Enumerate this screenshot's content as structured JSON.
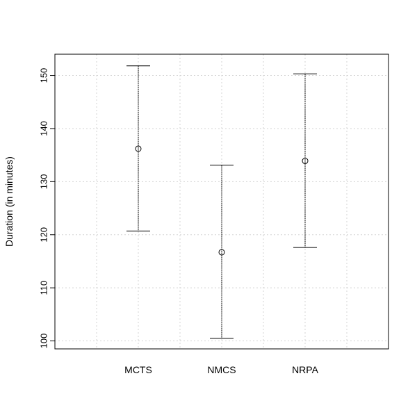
{
  "chart_data": {
    "type": "errorbar",
    "categories": [
      "MCTS",
      "NMCS",
      "NRPA"
    ],
    "series": [
      {
        "mean": [
          136.2,
          116.7,
          133.9
        ],
        "lower": [
          120.7,
          100.5,
          117.6
        ],
        "upper": [
          151.8,
          133.1,
          150.3
        ]
      }
    ],
    "title": "",
    "xlabel": "",
    "ylabel": "Duration (in minutes)",
    "ylim": [
      98.5,
      154.0
    ],
    "yticks": [
      100,
      110,
      120,
      130,
      140,
      150
    ],
    "grid": true,
    "colors": {
      "points": "#000000",
      "grid": "#d3d3d3",
      "frame": "#000000"
    }
  }
}
